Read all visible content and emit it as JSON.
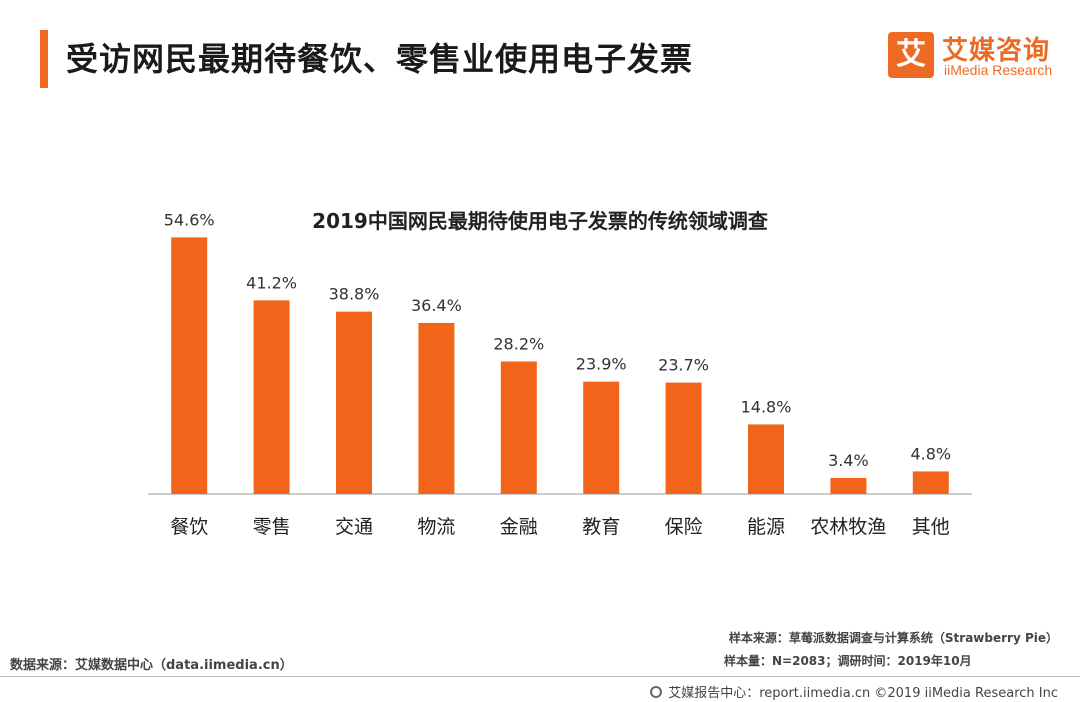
{
  "header": {
    "title": "受访网民最期待餐饮、零售业使用电子发票"
  },
  "logo": {
    "mark": "艾",
    "name_cn": "艾媒咨询",
    "name_en": "iiMedia Research",
    "color": "#ee6a22"
  },
  "chart_data": {
    "type": "bar",
    "title": "2019中国网民最期待使用电子发票的传统领域调查",
    "categories": [
      "餐饮",
      "零售",
      "交通",
      "物流",
      "金融",
      "教育",
      "保险",
      "能源",
      "农林牧渔",
      "其他"
    ],
    "values": [
      54.6,
      41.2,
      38.8,
      36.4,
      28.2,
      23.9,
      23.7,
      14.8,
      3.4,
      4.8
    ],
    "value_labels": [
      "54.6%",
      "41.2%",
      "38.8%",
      "36.4%",
      "28.2%",
      "23.9%",
      "23.7%",
      "14.8%",
      "3.4%",
      "4.8%"
    ],
    "unit": "%",
    "ylim": [
      0,
      60
    ],
    "bar_color": "#f26419",
    "grid": false,
    "xlabel": "",
    "ylabel": ""
  },
  "footer": {
    "source_left": "数据来源：艾媒数据中心（data.iimedia.cn）",
    "sample_source": "样本来源：草莓派数据调查与计算系统（Strawberry Pie）",
    "sample_size": "样本量：N=2083；调研时间：2019年10月",
    "report_center": "艾媒报告中心：report.iimedia.cn ©2019  iiMedia Research  Inc"
  }
}
